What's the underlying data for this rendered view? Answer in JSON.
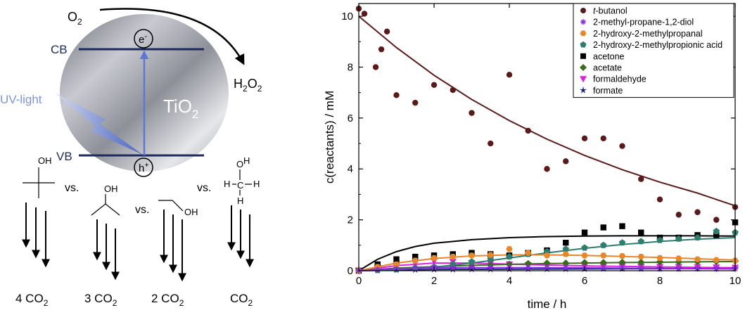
{
  "scheme": {
    "o2_label": "O",
    "o2_sub": "2",
    "h2o2_label_a": "H",
    "h2o2_sub_a": "2",
    "h2o2_label_b": "O",
    "h2o2_sub_b": "2",
    "cb_label": "CB",
    "vb_label": "VB",
    "electron_label": "e",
    "electron_sup": "-",
    "hole_label": "h",
    "hole_sup": "+",
    "uv_label": "UV-light",
    "tio2_label": "TiO",
    "tio2_sub": "2",
    "vs_labels": [
      "vs.",
      "vs.",
      "vs."
    ],
    "oh_label": "OH",
    "h_label": "H",
    "c_label": "C",
    "o_label": "O",
    "products": [
      {
        "count": "4 CO",
        "sub": "2"
      },
      {
        "count": "3 CO",
        "sub": "2"
      },
      {
        "count": "2 CO",
        "sub": "2"
      },
      {
        "count": "CO",
        "sub": "2"
      }
    ]
  },
  "chart_data": {
    "type": "scatter",
    "xlabel": "time / h",
    "ylabel": "c(reactants) / mM",
    "xlim": [
      0,
      10
    ],
    "ylim": [
      0,
      10.5
    ],
    "xticks": [
      0,
      2,
      4,
      6,
      8,
      10
    ],
    "yticks": [
      0,
      2,
      4,
      6,
      8,
      10
    ],
    "legend_position": "top-right",
    "series": [
      {
        "name": "t-butanol",
        "name_prefix": "t",
        "name_rest": "-butanol",
        "marker": "circle",
        "color": "#5b1a1a",
        "x": [
          0,
          0.15,
          0.45,
          0.6,
          0.75,
          1.0,
          1.5,
          2.0,
          2.5,
          3.0,
          3.5,
          4.0,
          4.5,
          5.0,
          5.5,
          6.0,
          6.5,
          7.0,
          7.5,
          8.0,
          8.5,
          9.0,
          9.5,
          10.0
        ],
        "y": [
          10.3,
          10.1,
          8.0,
          8.7,
          9.4,
          6.9,
          6.6,
          7.3,
          7.1,
          6.2,
          5.0,
          7.7,
          5.5,
          4.0,
          4.3,
          5.2,
          5.2,
          4.9,
          3.6,
          2.8,
          2.2,
          2.3,
          2.0,
          2.5
        ],
        "fit_x": [
          0,
          1,
          2,
          3,
          4,
          5,
          6,
          7,
          8,
          9,
          10
        ],
        "fit_y": [
          10.0,
          8.77,
          7.68,
          6.73,
          5.9,
          5.17,
          4.53,
          3.97,
          3.48,
          3.05,
          2.55
        ]
      },
      {
        "name": "2-methyl-propane-1,2-diol",
        "marker": "asterisk",
        "color": "#8a2be2",
        "x": [
          0,
          0.5,
          1,
          1.5,
          2,
          2.5,
          3,
          3.5,
          4,
          4.5,
          5,
          5.5,
          6,
          6.5,
          7,
          7.5,
          8,
          8.5,
          9,
          9.5,
          10
        ],
        "y": [
          0,
          0.05,
          0.08,
          0.1,
          0.12,
          0.12,
          0.13,
          0.13,
          0.13,
          0.12,
          0.12,
          0.11,
          0.11,
          0.1,
          0.1,
          0.09,
          0.08,
          0.08,
          0.08,
          0.07,
          0.07
        ],
        "fit_x": [
          0,
          1,
          2,
          3,
          4,
          5,
          6,
          7,
          8,
          9,
          10
        ],
        "fit_y": [
          0,
          0.08,
          0.11,
          0.12,
          0.12,
          0.12,
          0.11,
          0.1,
          0.09,
          0.08,
          0.07
        ]
      },
      {
        "name": "2-hydroxy-2-methylpropanal",
        "marker": "hexagon",
        "color": "#e8862a",
        "x": [
          0,
          0.5,
          1,
          1.5,
          2,
          2.5,
          3,
          3.5,
          4,
          4.5,
          5,
          5.5,
          6,
          6.5,
          7,
          7.5,
          8,
          8.5,
          9,
          9.5,
          10
        ],
        "y": [
          0,
          0.15,
          0.25,
          0.4,
          0.5,
          0.55,
          0.6,
          0.62,
          0.85,
          0.7,
          0.6,
          0.65,
          0.6,
          0.6,
          0.58,
          0.55,
          0.5,
          0.48,
          0.45,
          0.42,
          0.4
        ],
        "fit_x": [
          0,
          1,
          2,
          3,
          4,
          5,
          6,
          7,
          8,
          9,
          10
        ],
        "fit_y": [
          0,
          0.3,
          0.48,
          0.58,
          0.62,
          0.62,
          0.6,
          0.56,
          0.52,
          0.47,
          0.42
        ]
      },
      {
        "name": "2-hydroxy-2-methylpropionic acid",
        "marker": "pentagon",
        "color": "#2e7d6f",
        "x": [
          0,
          0.5,
          1,
          1.5,
          2,
          2.5,
          3,
          3.5,
          4,
          4.5,
          5,
          5.5,
          6,
          6.5,
          7,
          7.5,
          8,
          8.5,
          9,
          9.5,
          10
        ],
        "y": [
          0,
          0.02,
          0.05,
          0.1,
          0.15,
          0.25,
          0.35,
          0.45,
          0.55,
          0.65,
          0.75,
          0.85,
          0.9,
          1.0,
          1.1,
          1.15,
          1.2,
          1.25,
          1.3,
          1.55,
          1.5
        ],
        "fit_x": [
          0,
          1,
          2,
          3,
          4,
          5,
          6,
          7,
          8,
          9,
          10
        ],
        "fit_y": [
          0,
          0.04,
          0.14,
          0.3,
          0.5,
          0.7,
          0.88,
          1.03,
          1.15,
          1.24,
          1.3
        ]
      },
      {
        "name": "acetone",
        "marker": "square",
        "color": "#000000",
        "x": [
          0,
          0.5,
          1,
          1.5,
          2,
          2.5,
          3,
          3.5,
          4,
          4.5,
          5,
          5.5,
          6,
          6.5,
          7,
          7.5,
          8,
          8.5,
          9,
          9.5,
          10
        ],
        "y": [
          0,
          0.25,
          0.45,
          0.55,
          0.6,
          0.65,
          0.7,
          0.65,
          0.6,
          0.7,
          0.8,
          1.1,
          1.5,
          1.7,
          1.75,
          1.5,
          1.3,
          1.3,
          1.4,
          1.4,
          1.9
        ],
        "fit_x": [
          0,
          0.5,
          1,
          1.5,
          2,
          3,
          4,
          5,
          6,
          7,
          8,
          9,
          10
        ],
        "fit_y": [
          0,
          0.45,
          0.75,
          0.95,
          1.08,
          1.22,
          1.3,
          1.34,
          1.36,
          1.37,
          1.37,
          1.37,
          1.36
        ]
      },
      {
        "name": "acetate",
        "marker": "diamond",
        "color": "#3a6b1a",
        "x": [
          0,
          0.5,
          1,
          1.5,
          2,
          2.5,
          3,
          3.5,
          4,
          4.5,
          5,
          5.5,
          6,
          6.5,
          7,
          7.5,
          8,
          8.5,
          9,
          9.5,
          10
        ],
        "y": [
          0,
          0.05,
          0.1,
          0.12,
          0.15,
          0.18,
          0.2,
          0.22,
          0.25,
          0.28,
          0.3,
          0.3,
          0.32,
          0.32,
          0.33,
          0.33,
          0.35,
          0.35,
          0.35,
          0.36,
          0.38
        ],
        "fit_x": [
          0,
          1,
          2,
          3,
          4,
          5,
          6,
          7,
          8,
          9,
          10
        ],
        "fit_y": [
          0,
          0.1,
          0.16,
          0.21,
          0.25,
          0.28,
          0.3,
          0.32,
          0.33,
          0.35,
          0.36
        ]
      },
      {
        "name": "formaldehyde",
        "marker": "triangle-down",
        "color": "#e020e0",
        "x": [
          0,
          0.5,
          1,
          1.5,
          2,
          2.5,
          3,
          3.5,
          4,
          4.5,
          5,
          5.5,
          6,
          6.5,
          7,
          7.5,
          8,
          8.5,
          9,
          9.5,
          10
        ],
        "y": [
          0,
          0.1,
          0.2,
          0.3,
          0.38,
          0.35,
          0.3,
          0.28,
          0.25,
          0.22,
          0.2,
          0.2,
          0.18,
          0.17,
          0.17,
          0.16,
          0.15,
          0.15,
          0.14,
          0.13,
          0.12
        ],
        "fit_x": [
          0,
          1,
          2,
          3,
          4,
          5,
          6,
          7,
          8,
          9,
          10
        ],
        "fit_y": [
          0,
          0.2,
          0.3,
          0.3,
          0.26,
          0.22,
          0.19,
          0.17,
          0.15,
          0.13,
          0.12
        ]
      },
      {
        "name": "formate",
        "marker": "star",
        "color": "#1a237e",
        "x": [
          0,
          0.5,
          1,
          1.5,
          2,
          2.5,
          3,
          3.5,
          4,
          4.5,
          5,
          5.5,
          6,
          6.5,
          7,
          7.5,
          8,
          8.5,
          9,
          9.5,
          10
        ],
        "y": [
          0,
          0.02,
          0.03,
          0.04,
          0.05,
          0.05,
          0.06,
          0.06,
          0.06,
          0.07,
          0.07,
          0.07,
          0.07,
          0.08,
          0.08,
          0.08,
          0.08,
          0.08,
          0.09,
          0.09,
          0.09
        ],
        "fit_x": [
          0,
          2,
          4,
          6,
          8,
          10
        ],
        "fit_y": [
          0,
          0.05,
          0.06,
          0.07,
          0.08,
          0.09
        ]
      }
    ]
  }
}
